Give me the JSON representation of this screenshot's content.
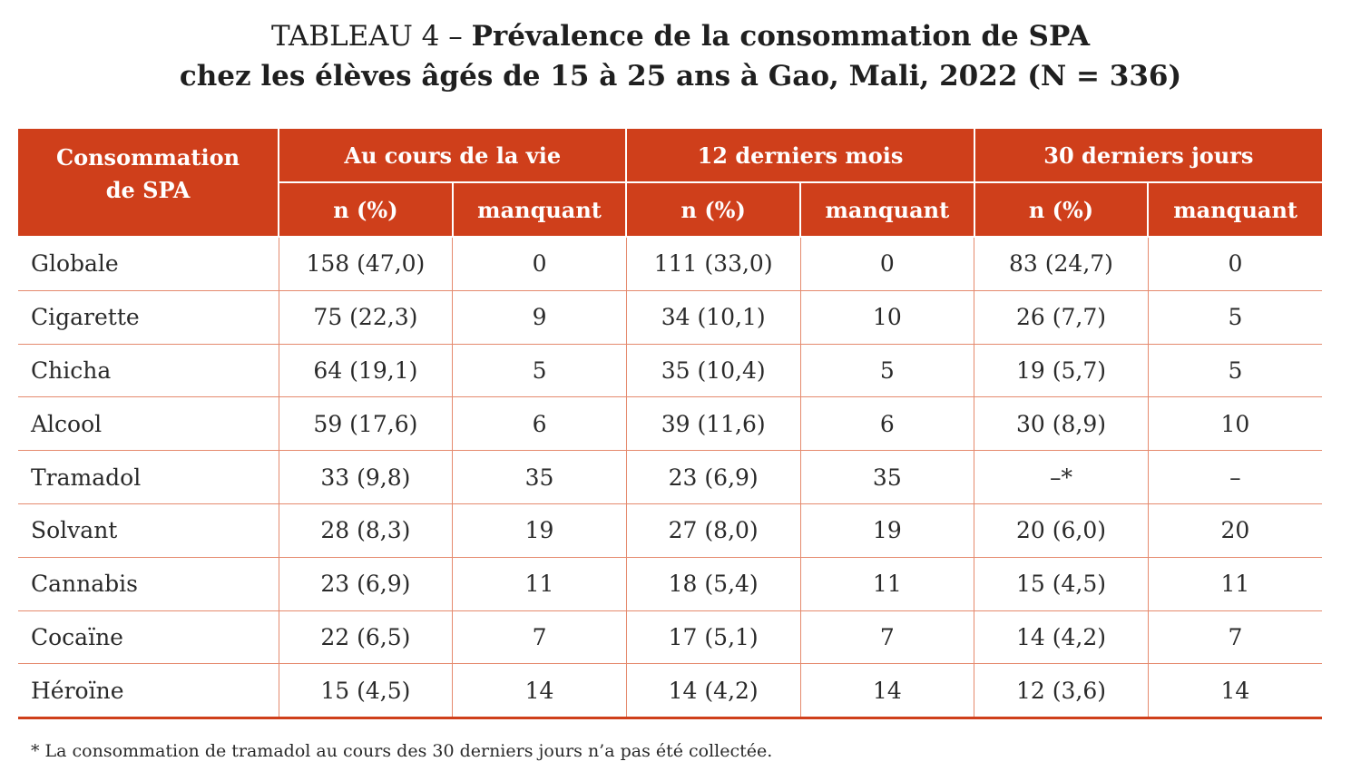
{
  "title": {
    "label": "TABLEAU 4 – ",
    "line1_bold": "Prévalence de la consommation de SPA",
    "line2_bold": "chez les élèves âgés de 15 à 25 ans à Gao, Mali, 2022 (N = 336)"
  },
  "table": {
    "header": {
      "first_col_line1": "Consommation",
      "first_col_line2": "de SPA",
      "groups": [
        "Au cours de la vie",
        "12 derniers mois",
        "30 derniers jours"
      ],
      "sub": [
        "n (%)",
        "manquant",
        "n (%)",
        "manquant",
        "n (%)",
        "manquant"
      ]
    },
    "rows": [
      [
        "Globale",
        "158 (47,0)",
        "0",
        "111 (33,0)",
        "0",
        "83 (24,7)",
        "0"
      ],
      [
        "Cigarette",
        "75 (22,3)",
        "9",
        "34 (10,1)",
        "10",
        "26 (7,7)",
        "5"
      ],
      [
        "Chicha",
        "64 (19,1)",
        "5",
        "35 (10,4)",
        "5",
        "19 (5,7)",
        "5"
      ],
      [
        "Alcool",
        "59 (17,6)",
        "6",
        "39 (11,6)",
        "6",
        "30 (8,9)",
        "10"
      ],
      [
        "Tramadol",
        "33 (9,8)",
        "35",
        "23 (6,9)",
        "35",
        "–*",
        "–"
      ],
      [
        "Solvant",
        "28 (8,3)",
        "19",
        "27 (8,0)",
        "19",
        "20 (6,0)",
        "20"
      ],
      [
        "Cannabis",
        "23 (6,9)",
        "11",
        "18 (5,4)",
        "11",
        "15 (4,5)",
        "11"
      ],
      [
        "Cocaïne",
        "22 (6,5)",
        "7",
        "17 (5,1)",
        "7",
        "14 (4,2)",
        "7"
      ],
      [
        "Héroïne",
        "15 (4,5)",
        "14",
        "14 (4,2)",
        "14",
        "12 (3,6)",
        "14"
      ]
    ]
  },
  "footnote": "* La consommation de tramadol au cours des 30 derniers jours n’a pas été collectée.",
  "colors": {
    "header_bg": "#cf3f1b",
    "header_text": "#ffffff",
    "grid": "#e58a6e",
    "text": "#2a2a2a"
  }
}
